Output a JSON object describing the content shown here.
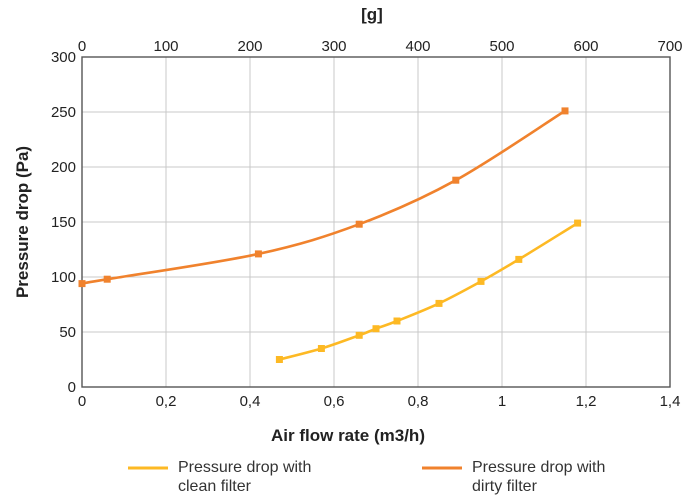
{
  "chart_data": {
    "type": "line",
    "xlabel": "Air flow rate (m3/h)",
    "ylabel": "Pressure drop (Pa)",
    "top_axis_label": "[g]",
    "xlim": [
      0,
      1.4
    ],
    "ylim": [
      0,
      300
    ],
    "top_xlim": [
      0,
      700
    ],
    "x_ticks": [
      "0",
      "0,2",
      "0,4",
      "0,6",
      "0,8",
      "1",
      "1,2",
      "1,4"
    ],
    "x_tick_values": [
      0,
      0.2,
      0.4,
      0.6,
      0.8,
      1.0,
      1.2,
      1.4
    ],
    "top_ticks": [
      "0",
      "100",
      "200",
      "300",
      "400",
      "500",
      "600",
      "700"
    ],
    "top_tick_values": [
      0,
      100,
      200,
      300,
      400,
      500,
      600,
      700
    ],
    "y_ticks": [
      "0",
      "50",
      "100",
      "150",
      "200",
      "250",
      "300"
    ],
    "y_tick_values": [
      0,
      50,
      100,
      150,
      200,
      250,
      300
    ],
    "grid": true,
    "legend_position": "bottom",
    "series": [
      {
        "name": "Pressure drop with clean filter",
        "legend_lines": [
          "Pressure drop with",
          "clean filter"
        ],
        "color": "#FDB924",
        "points": [
          [
            0.47,
            25
          ],
          [
            0.57,
            35
          ],
          [
            0.66,
            47
          ],
          [
            0.7,
            53
          ],
          [
            0.75,
            60
          ],
          [
            0.85,
            76
          ],
          [
            0.95,
            96
          ],
          [
            1.04,
            116
          ],
          [
            1.18,
            149
          ]
        ]
      },
      {
        "name": "Pressure drop with dirty filter",
        "legend_lines": [
          "Pressure drop with",
          "dirty filter"
        ],
        "color": "#F0822D",
        "points": [
          [
            0.0,
            94
          ],
          [
            0.06,
            98
          ],
          [
            0.42,
            121
          ],
          [
            0.66,
            148
          ],
          [
            0.89,
            188
          ],
          [
            1.15,
            251
          ]
        ]
      }
    ]
  }
}
